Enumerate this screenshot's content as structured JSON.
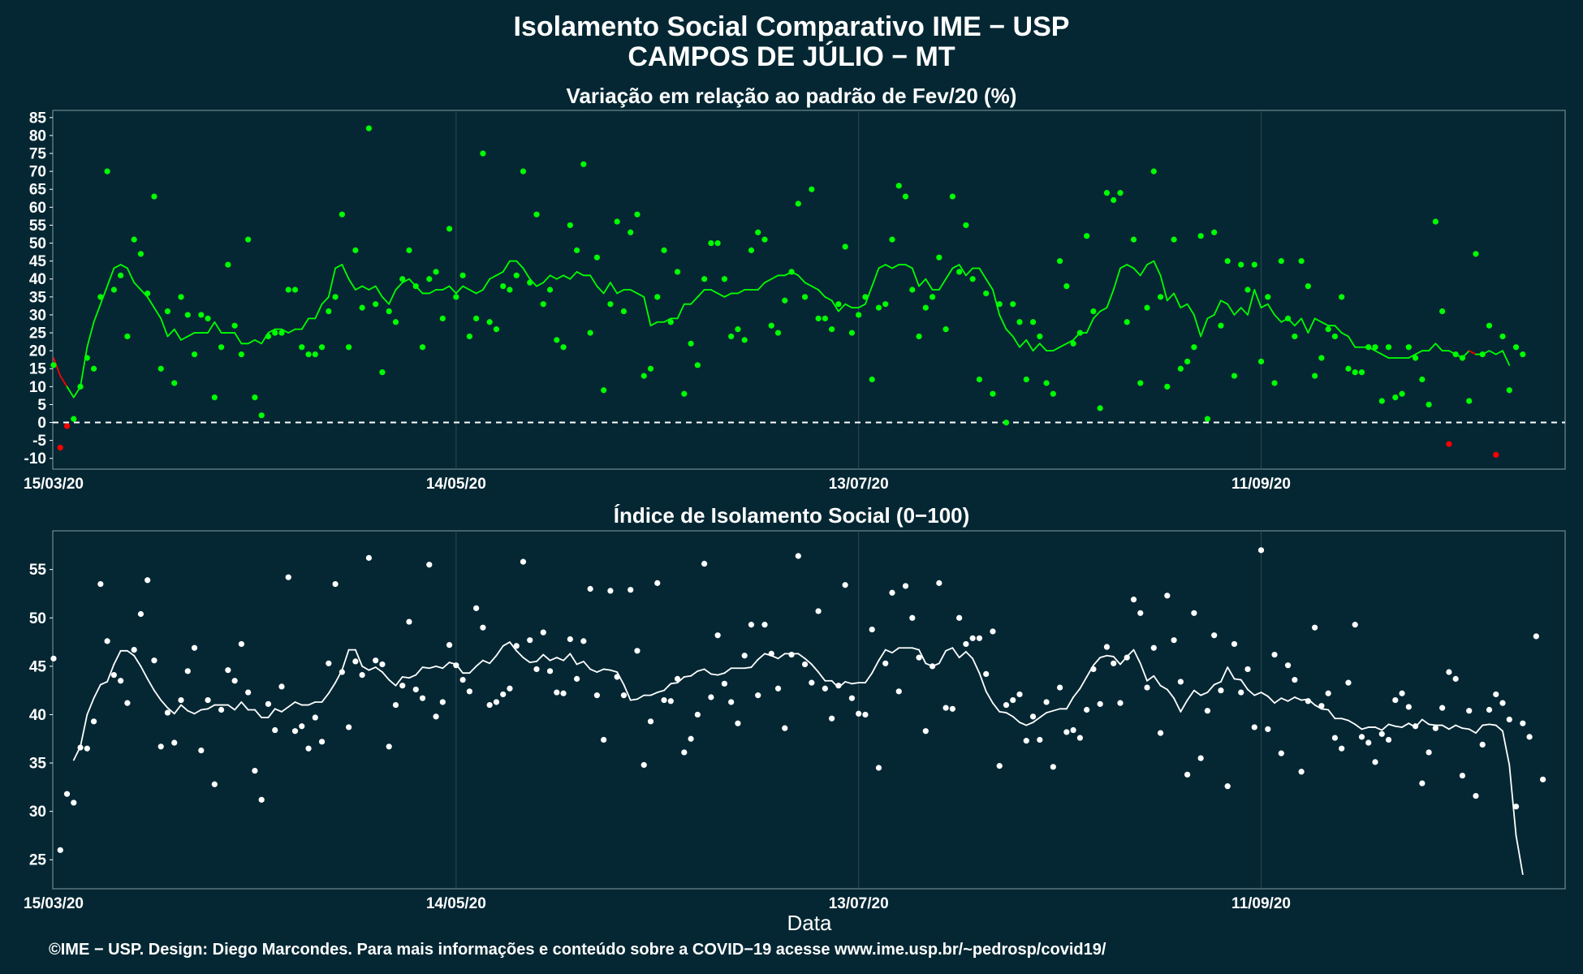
{
  "title_line1": "Isolamento Social Comparativo IME − USP",
  "title_line2": "CAMPOS DE JÚLIO − MT",
  "xlabel": "Data",
  "caption": "©IME − USP. Design: Diego Marcondes. Para mais informações e conteúdo sobre a COVID−19 acesse www.ime.usp.br/~pedrosp/covid19/",
  "colors": {
    "background": "#042733",
    "positive": "#00ff00",
    "negative": "#ff0000",
    "index": "#ffffff",
    "zero_line": "#ffffff"
  },
  "chart_data": [
    {
      "type": "scatter",
      "title": "Variação em relação ao padrão de Fev/20 (%)",
      "start_date": "15/03/20",
      "x_tick_labels": [
        "15/03/20",
        "14/05/20",
        "13/07/20",
        "11/09/20"
      ],
      "x_tick_days": [
        0,
        60,
        120,
        180
      ],
      "ylim": [
        -13,
        87
      ],
      "y_ticks": [
        -10,
        -5,
        0,
        5,
        10,
        15,
        20,
        25,
        30,
        35,
        40,
        45,
        50,
        55,
        60,
        65,
        70,
        75,
        80,
        85
      ],
      "zero_reference_line": "dashed",
      "point_color_rule": "green when value >= 0, red when value < 0",
      "series": [
        {
          "name": "",
          "values": [
            16,
            -7,
            -1,
            1,
            10,
            18,
            15,
            35,
            70,
            37,
            41,
            24,
            51,
            47,
            36,
            63,
            15,
            31,
            11,
            35,
            30,
            19,
            30,
            29,
            7,
            21,
            44,
            27,
            19,
            51,
            7,
            2,
            24,
            25,
            25,
            37,
            37,
            21,
            19,
            19,
            21,
            31,
            35,
            58,
            21,
            48,
            32,
            82,
            33,
            14,
            31,
            28,
            40,
            48,
            38,
            21,
            40,
            42,
            29,
            54,
            35,
            41,
            24,
            29,
            75,
            28,
            26,
            38,
            37,
            41,
            70,
            39,
            58,
            33,
            37,
            23,
            21,
            55,
            48,
            72,
            25,
            46,
            9,
            33,
            56,
            31,
            53,
            58,
            13,
            15,
            35,
            48,
            28,
            42,
            8,
            22,
            16,
            40,
            50,
            50,
            40,
            24,
            26,
            23,
            48,
            53,
            51,
            27,
            25,
            34,
            42,
            61,
            35,
            65,
            29,
            29,
            26,
            33,
            49,
            25,
            30,
            35,
            12,
            32,
            33,
            51,
            66,
            63,
            37,
            24,
            32,
            35,
            46,
            26,
            63,
            42,
            55,
            40,
            12,
            36,
            8,
            33,
            0,
            33,
            28,
            12,
            28,
            24,
            11,
            8,
            45,
            38,
            22,
            25,
            52,
            31,
            4,
            64,
            62,
            64,
            28,
            51,
            11,
            32,
            70,
            35,
            10,
            51,
            15,
            17,
            21,
            52,
            1,
            53,
            27,
            45,
            13,
            44,
            37,
            44,
            17,
            35,
            11,
            45,
            29,
            24,
            45,
            38,
            13,
            18,
            26,
            24,
            35,
            15,
            14,
            14,
            21,
            21,
            6,
            21,
            7,
            8,
            21,
            18,
            12,
            5,
            56,
            31,
            -6,
            19,
            18,
            6,
            47,
            19,
            27,
            -9,
            24,
            9,
            21,
            19
          ]
        }
      ],
      "moving_average": [
        18,
        13,
        10,
        7,
        10,
        21,
        28,
        33,
        38,
        43,
        44,
        43,
        39,
        37,
        35,
        32,
        29,
        24,
        26,
        23,
        24,
        25,
        25,
        25,
        28,
        25,
        25,
        25,
        22,
        22,
        23,
        22,
        25,
        26,
        26,
        25,
        26,
        26,
        29,
        29,
        33,
        35,
        43,
        44,
        40,
        37,
        38,
        37,
        38,
        35,
        33,
        37,
        39,
        40,
        38,
        36,
        36,
        37,
        37,
        38,
        36,
        38,
        37,
        36,
        37,
        40,
        41,
        42,
        45,
        45,
        43,
        40,
        38,
        39,
        41,
        40,
        41,
        40,
        42,
        41,
        41,
        38,
        36,
        39,
        36,
        37,
        37,
        36,
        35,
        27,
        28,
        28,
        29,
        29,
        33,
        33,
        35,
        37,
        37,
        36,
        35,
        36,
        36,
        37,
        37,
        37,
        39,
        40,
        41,
        41,
        42,
        41,
        39,
        38,
        37,
        35,
        34,
        31,
        33,
        32,
        32,
        33,
        38,
        43,
        44,
        43,
        44,
        44,
        43,
        38,
        40,
        37,
        37,
        40,
        43,
        44,
        41,
        43,
        43,
        40,
        37,
        30,
        26,
        24,
        21,
        23,
        20,
        22,
        20,
        20,
        21,
        22,
        23,
        25,
        25,
        29,
        31,
        32,
        37,
        43,
        44,
        43,
        41,
        44,
        45,
        41,
        34,
        36,
        32,
        33,
        30,
        24,
        29,
        30,
        34,
        33,
        30,
        32,
        30,
        37,
        32,
        33,
        30,
        28,
        29,
        27,
        29,
        25,
        29,
        28,
        27,
        27,
        25,
        24,
        21,
        21,
        21,
        20,
        19,
        18,
        18,
        18,
        18,
        19,
        20,
        20,
        22,
        20,
        20,
        19,
        18,
        20,
        19,
        19,
        20,
        19,
        20,
        16
      ]
    },
    {
      "type": "scatter",
      "title": "Índice de Isolamento Social (0−100)",
      "start_date": "15/03/20",
      "x_tick_labels": [
        "15/03/20",
        "14/05/20",
        "13/07/20",
        "11/09/20"
      ],
      "x_tick_days": [
        0,
        60,
        120,
        180
      ],
      "ylim": [
        22,
        59
      ],
      "y_ticks": [
        25,
        30,
        35,
        40,
        45,
        50,
        55
      ],
      "series": [
        {
          "name": "",
          "values": [
            45.8,
            26.0,
            31.8,
            30.9,
            36.6,
            36.5,
            39.3,
            53.5,
            47.6,
            44.1,
            43.5,
            41.2,
            46.7,
            50.4,
            53.9,
            45.6,
            36.7,
            40.2,
            37.1,
            41.5,
            44.5,
            46.9,
            36.3,
            41.5,
            32.8,
            40.5,
            44.6,
            43.5,
            47.3,
            42.3,
            34.2,
            31.2,
            41.1,
            38.4,
            42.9,
            54.2,
            38.3,
            38.8,
            36.5,
            39.7,
            37.2,
            45.3,
            53.5,
            44.4,
            38.7,
            45.5,
            44.1,
            56.2,
            45.6,
            45.2,
            36.7,
            41.0,
            43.0,
            49.6,
            42.6,
            41.7,
            55.5,
            39.8,
            41.3,
            47.2,
            45.1,
            43.6,
            42.4,
            51.0,
            49.0,
            41.0,
            41.3,
            42.1,
            42.7,
            47.1,
            55.8,
            47.7,
            44.7,
            48.5,
            44.5,
            42.3,
            42.2,
            47.8,
            43.7,
            47.6,
            53.0,
            42.0,
            37.4,
            52.8,
            43.9,
            42.0,
            52.9,
            46.6,
            34.8,
            39.3,
            53.6,
            41.5,
            41.4,
            43.7,
            36.1,
            37.5,
            40.0,
            55.6,
            41.8,
            48.2,
            43.2,
            41.3,
            39.1,
            46.1,
            49.3,
            42.0,
            49.3,
            46.3,
            42.7,
            38.6,
            46.2,
            56.4,
            45.2,
            43.3,
            50.7,
            42.7,
            39.6,
            43.0,
            53.4,
            41.7,
            40.1,
            40.0,
            48.8,
            34.5,
            45.3,
            52.6,
            42.4,
            53.3,
            50.0,
            45.9,
            38.3,
            45.0,
            53.6,
            40.7,
            40.6,
            50.0,
            47.3,
            47.9,
            47.9,
            44.2,
            48.6,
            34.7,
            41.0,
            41.5,
            42.1,
            37.3,
            39.8,
            37.4,
            41.3,
            34.6,
            42.8,
            38.2,
            38.4,
            37.6,
            40.5,
            44.7,
            41.1,
            47.0,
            45.3,
            41.2,
            45.9,
            51.9,
            50.5,
            42.8,
            46.9,
            38.1,
            52.3,
            47.7,
            43.4,
            33.8,
            50.5,
            35.5,
            40.4,
            48.2,
            42.5,
            32.6,
            47.3,
            42.3,
            44.7,
            38.7,
            57.0,
            38.5,
            46.2,
            36.0,
            45.1,
            43.6,
            34.1,
            41.4,
            49.0,
            40.9,
            42.2,
            37.6,
            36.5,
            43.3,
            49.3,
            37.7,
            37.1,
            35.1,
            38.0,
            37.4,
            41.5,
            42.2,
            40.8,
            38.8,
            32.9,
            36.1,
            38.6,
            40.7,
            44.4,
            43.7,
            33.7,
            40.4,
            31.6,
            36.9,
            40.5,
            42.1,
            41.2,
            39.5,
            30.5,
            39.1,
            37.7,
            48.1,
            33.3
          ]
        }
      ],
      "moving_average": [
        null,
        null,
        null,
        35.3,
        36.7,
        40.0,
        41.7,
        43.1,
        43.4,
        45.2,
        46.6,
        46.6,
        46.1,
        45.0,
        43.7,
        42.5,
        41.5,
        40.7,
        40.1,
        41.0,
        40.4,
        40.1,
        40.5,
        40.6,
        41.0,
        41.0,
        41.0,
        40.5,
        41.3,
        40.5,
        40.5,
        39.7,
        39.7,
        40.6,
        40.3,
        40.8,
        41.3,
        41.0,
        41.0,
        41.3,
        41.3,
        42.2,
        43.3,
        44.6,
        46.7,
        46.7,
        45.0,
        44.6,
        44.9,
        44.4,
        43.6,
        43.0,
        43.9,
        43.8,
        44.1,
        44.9,
        44.8,
        45.0,
        44.8,
        45.4,
        45.2,
        44.3,
        44.3,
        45.0,
        45.6,
        45.3,
        46.1,
        47.1,
        47.5,
        46.6,
        45.9,
        45.4,
        45.5,
        46.2,
        45.6,
        45.9,
        45.6,
        46.3,
        45.2,
        45.5,
        44.7,
        44.4,
        44.7,
        44.6,
        44.4,
        43.1,
        41.5,
        41.6,
        42.0,
        42.0,
        42.3,
        42.5,
        43.2,
        43.3,
        43.9,
        44.0,
        44.5,
        44.7,
        44.2,
        44.1,
        44.3,
        44.8,
        44.8,
        44.8,
        44.9,
        45.7,
        46.3,
        46.1,
        45.8,
        46.3,
        46.3,
        46.3,
        45.8,
        45.2,
        44.4,
        43.5,
        43.5,
        42.8,
        43.4,
        43.2,
        43.3,
        43.3,
        44.3,
        45.6,
        46.7,
        46.4,
        46.9,
        46.9,
        46.9,
        46.7,
        45.3,
        45.0,
        45.3,
        46.6,
        46.9,
        45.9,
        46.5,
        45.8,
        44.3,
        42.4,
        41.2,
        40.3,
        40.2,
        39.8,
        39.2,
        38.9,
        39.2,
        39.7,
        40.2,
        40.4,
        40.6,
        40.6,
        41.8,
        42.7,
        43.9,
        45.1,
        45.9,
        46.1,
        46.0,
        45.2,
        46.0,
        46.7,
        45.3,
        43.5,
        44.0,
        43.0,
        42.6,
        41.7,
        40.3,
        41.5,
        42.5,
        42.0,
        42.3,
        43.1,
        43.4,
        44.9,
        43.7,
        43.6,
        42.6,
        42.0,
        42.3,
        41.9,
        41.2,
        41.7,
        41.4,
        41.8,
        41.5,
        41.6,
        41.0,
        40.6,
        40.5,
        39.6,
        39.6,
        39.4,
        39.0,
        38.5,
        38.7,
        38.7,
        38.4,
        39.0,
        38.8,
        38.7,
        39.1,
        38.7,
        39.5,
        39.0,
        38.9,
        38.9,
        38.5,
        38.9,
        38.6,
        38.5,
        38.1,
        38.9,
        39.0,
        38.9,
        38.3,
        34.8,
        27.5,
        23.5
      ]
    }
  ]
}
